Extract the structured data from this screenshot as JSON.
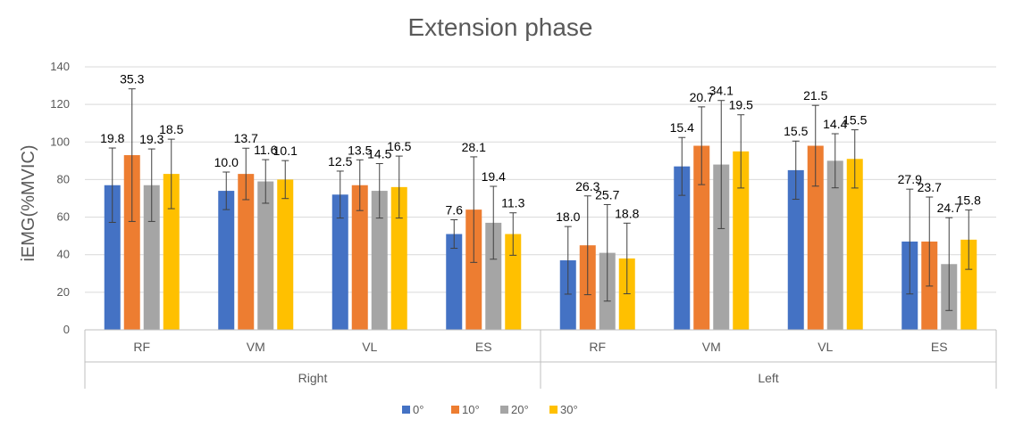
{
  "chart_data": {
    "type": "bar",
    "title": "Extension phase",
    "ylabel": "iEMG(%MVIC)",
    "xlabel": "",
    "ylim": [
      0,
      140
    ],
    "yticks": [
      0,
      20,
      40,
      60,
      80,
      100,
      120,
      140
    ],
    "groups": [
      {
        "name": "Right",
        "categories": [
          "RF",
          "VM",
          "VL",
          "ES"
        ]
      },
      {
        "name": "Left",
        "categories": [
          "RF",
          "VM",
          "VL",
          "ES"
        ]
      }
    ],
    "categories": [
      "RF",
      "VM",
      "VL",
      "ES",
      "RF",
      "VM",
      "VL",
      "ES"
    ],
    "series": [
      {
        "name": "0°",
        "color": "#4472C4",
        "values": [
          77,
          74,
          72,
          51,
          37,
          87,
          85,
          47
        ],
        "errors": [
          19.8,
          10.0,
          12.5,
          7.6,
          18.0,
          15.4,
          15.5,
          27.9
        ]
      },
      {
        "name": "10°",
        "color": "#ED7D31",
        "values": [
          93,
          83,
          77,
          64,
          45,
          98,
          98,
          47
        ],
        "errors": [
          35.3,
          13.7,
          13.5,
          28.1,
          26.3,
          20.7,
          21.5,
          23.7
        ]
      },
      {
        "name": "20°",
        "color": "#A5A5A5",
        "values": [
          77,
          79,
          74,
          57,
          41,
          88,
          90,
          35
        ],
        "errors": [
          19.3,
          11.6,
          14.5,
          19.4,
          25.7,
          34.1,
          14.4,
          24.7
        ]
      },
      {
        "name": "30°",
        "color": "#FFC000",
        "values": [
          83,
          80,
          76,
          51,
          38,
          95,
          91,
          48
        ],
        "errors": [
          18.5,
          10.1,
          16.5,
          11.3,
          18.8,
          19.5,
          15.5,
          15.8
        ]
      }
    ],
    "error_labels": {
      "0°": [
        "19.8",
        "10.0",
        "12.5",
        "7.6",
        "18.0",
        "15.4",
        "15.5",
        "27.9"
      ],
      "10°": [
        "35.3",
        "13.7",
        "13.5",
        "28.1",
        "26.3",
        "20.7",
        "21.5",
        "23.7"
      ],
      "20°": [
        "19.3",
        "11.6",
        "14.5",
        "19.4",
        "25.7",
        "34.1",
        "14.4",
        "24.7"
      ],
      "30°": [
        "18.5",
        "10.1",
        "16.5",
        "11.3",
        "18.8",
        "19.5",
        "15.5",
        "15.8"
      ]
    },
    "grid": true,
    "legend": "bottom"
  }
}
